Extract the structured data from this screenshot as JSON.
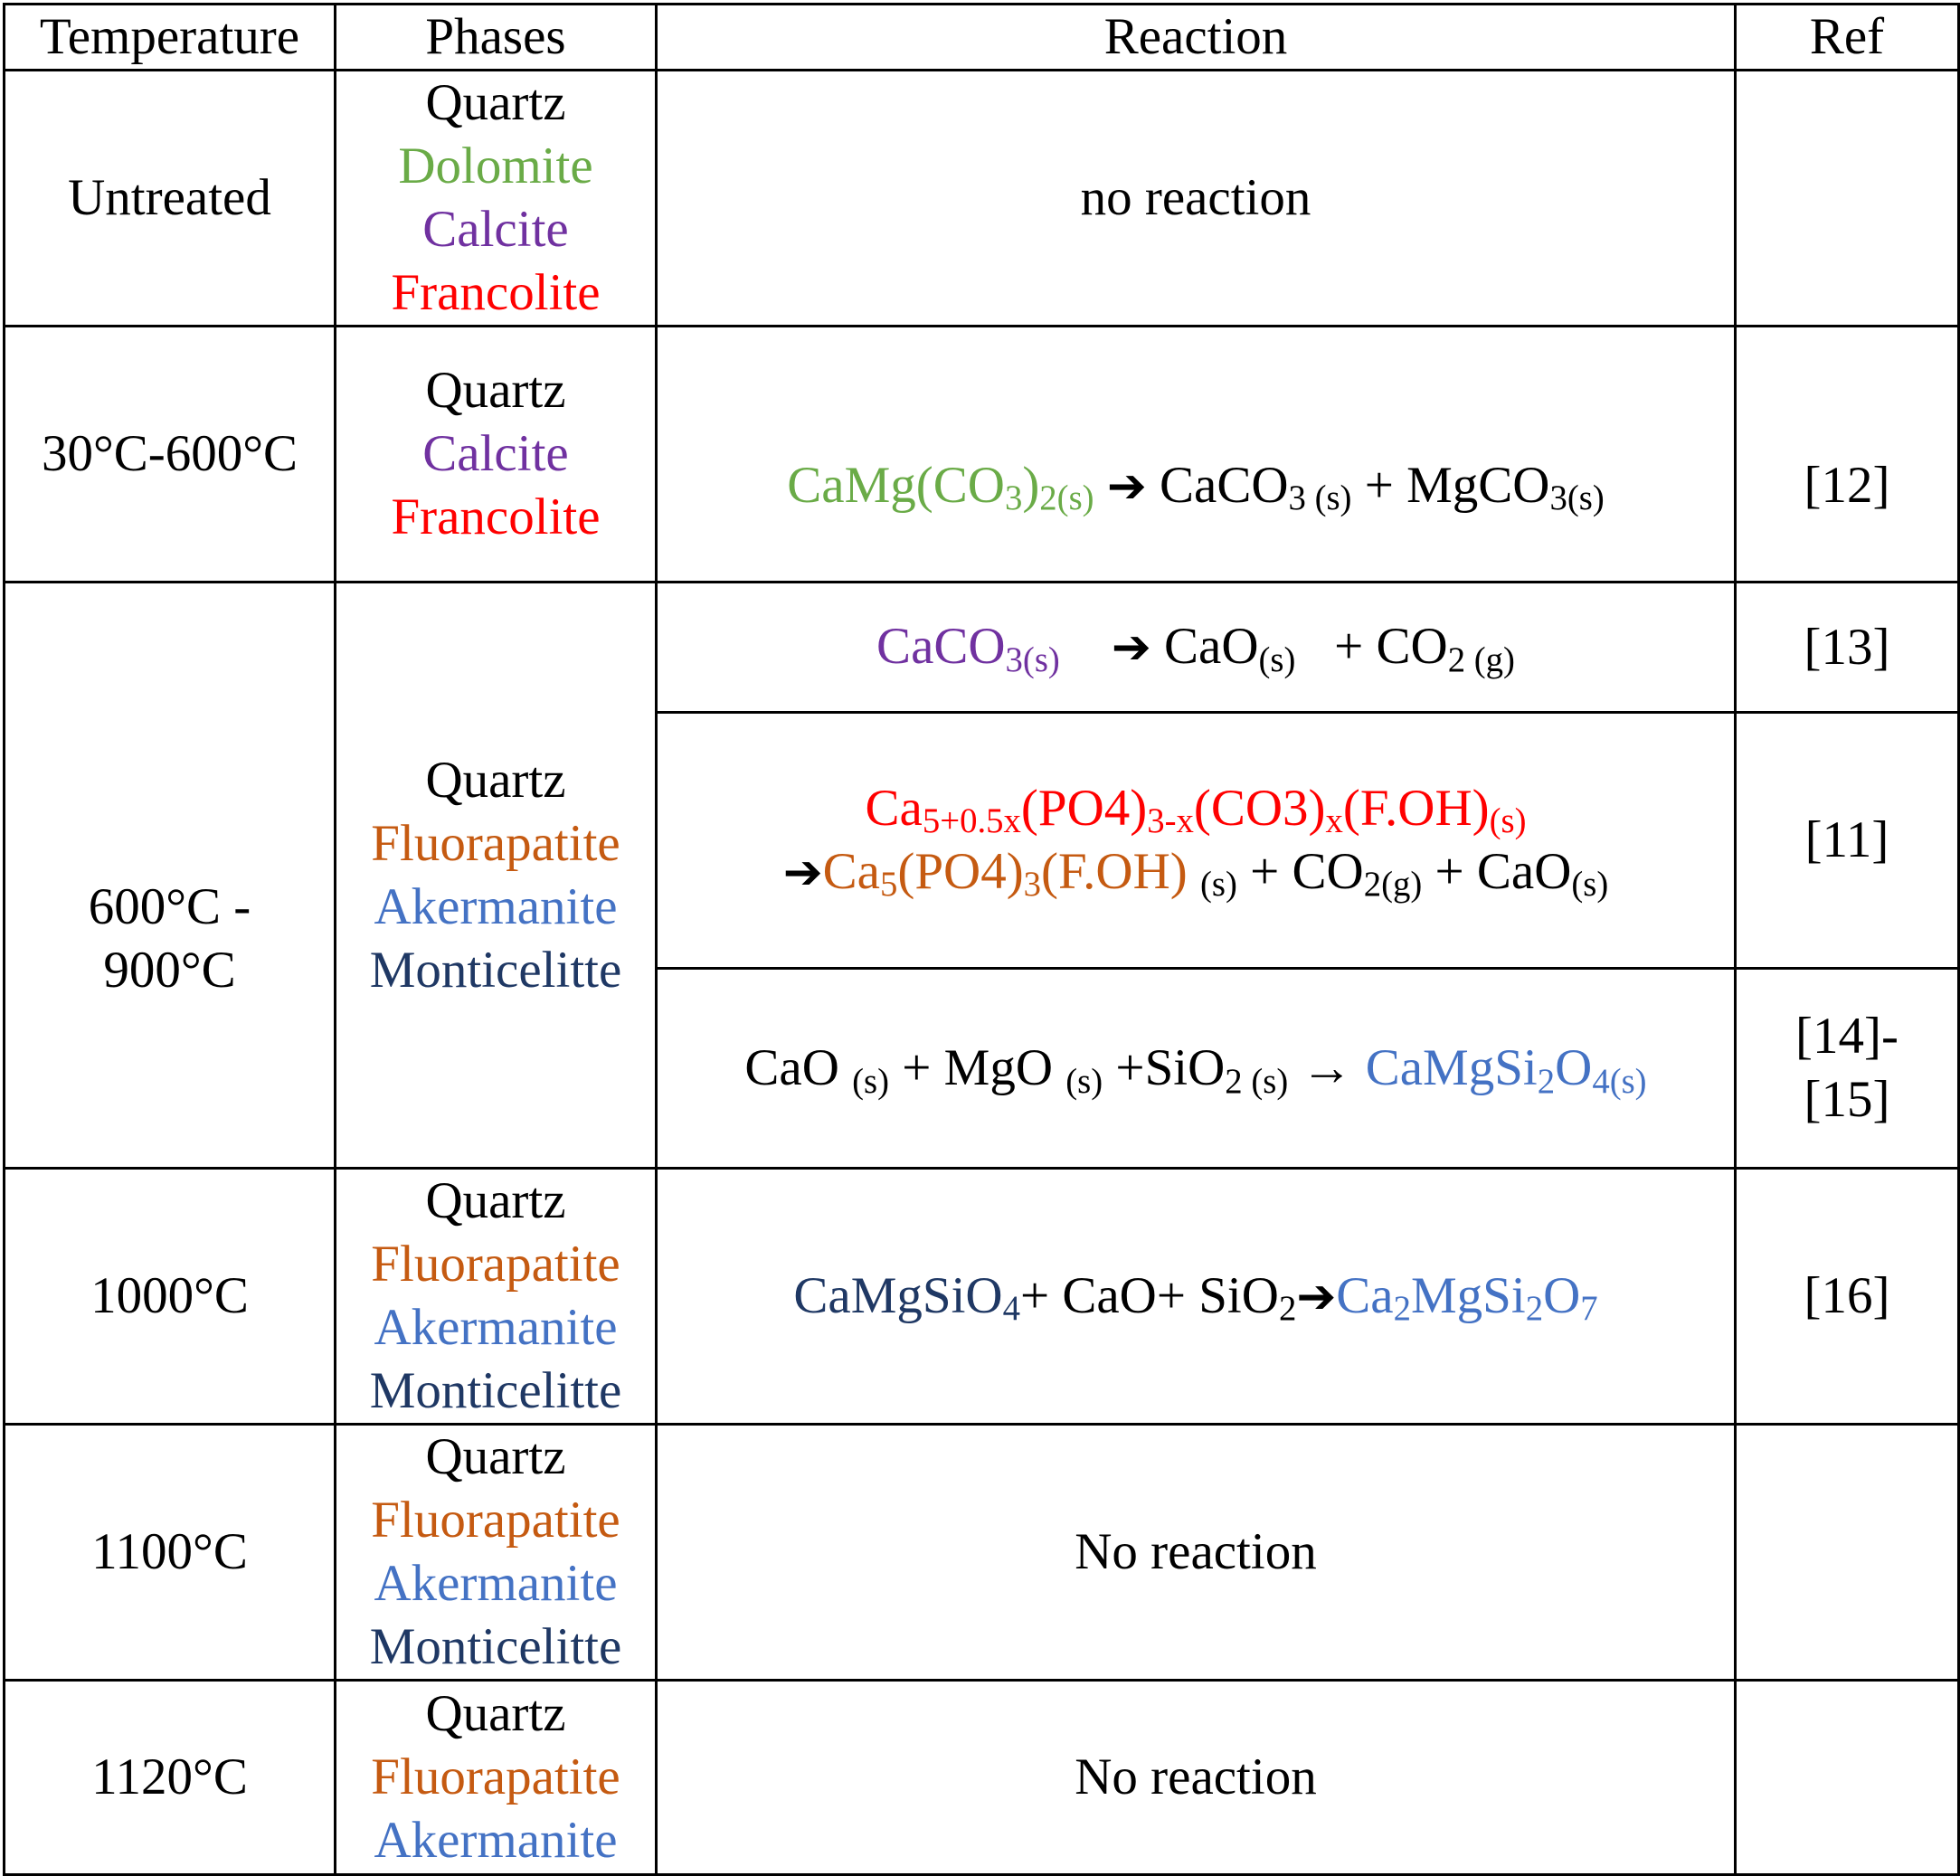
{
  "headers": {
    "temperature": "Temperature",
    "phases": "Phases",
    "reaction": "Reaction",
    "ref": "Ref"
  },
  "colors": {
    "quartz": "#000000",
    "dolomite": "#6aab47",
    "calcite": "#7031a0",
    "francolite": "#ff0000",
    "fluorapatite": "#c55a11",
    "akermanite": "#4472c4",
    "monticelitte": "#1f3864"
  },
  "rows": [
    {
      "temperature": "Untreated",
      "phases": [
        "Quartz",
        "Dolomite",
        "Calcite",
        "Francolite"
      ],
      "reaction": "no reaction",
      "ref": ""
    },
    {
      "temperature": "30°C-600°C",
      "phases": [
        "Quartz",
        "Calcite",
        "Francolite"
      ],
      "reaction": "CaMg(CO3)2(s) → CaCO3 (s) + MgCO3(s)",
      "ref": "[12]"
    },
    {
      "temperature_line1": "600°C -",
      "temperature_line2": "900°C",
      "phases": [
        "Quartz",
        "Fluorapatite",
        "Akermanite",
        "Monticelitte"
      ],
      "reactions": [
        {
          "text": "CaCO3(s) → CaO(s) + CO2 (g)",
          "ref": "[13]"
        },
        {
          "text": "Ca5+0.5x(PO4)3-x(CO3)x(F.OH)(s) →Ca5(PO4)3(F.OH) (s) + CO2(g) + CaO(s)",
          "ref": "[11]"
        },
        {
          "text": "CaO (s) + MgO (s) +SiO2 (s) → CaMgSi2O4(s)",
          "ref_line1": "[14]-",
          "ref_line2": "[15]"
        }
      ]
    },
    {
      "temperature": "1000°C",
      "phases": [
        "Quartz",
        "Fluorapatite",
        "Akermanite",
        "Monticelitte"
      ],
      "reaction": "CaMgSiO4+ CaO+ SiO2→Ca2MgSi2O7",
      "ref": "[16]"
    },
    {
      "temperature": "1100°C",
      "phases": [
        "Quartz",
        "Fluorapatite",
        "Akermanite",
        "Monticelitte"
      ],
      "reaction": "No reaction",
      "ref": ""
    },
    {
      "temperature": "1120°C",
      "phases": [
        "Quartz",
        "Fluorapatite",
        "Akermanite"
      ],
      "reaction": "No reaction",
      "ref": ""
    }
  ]
}
